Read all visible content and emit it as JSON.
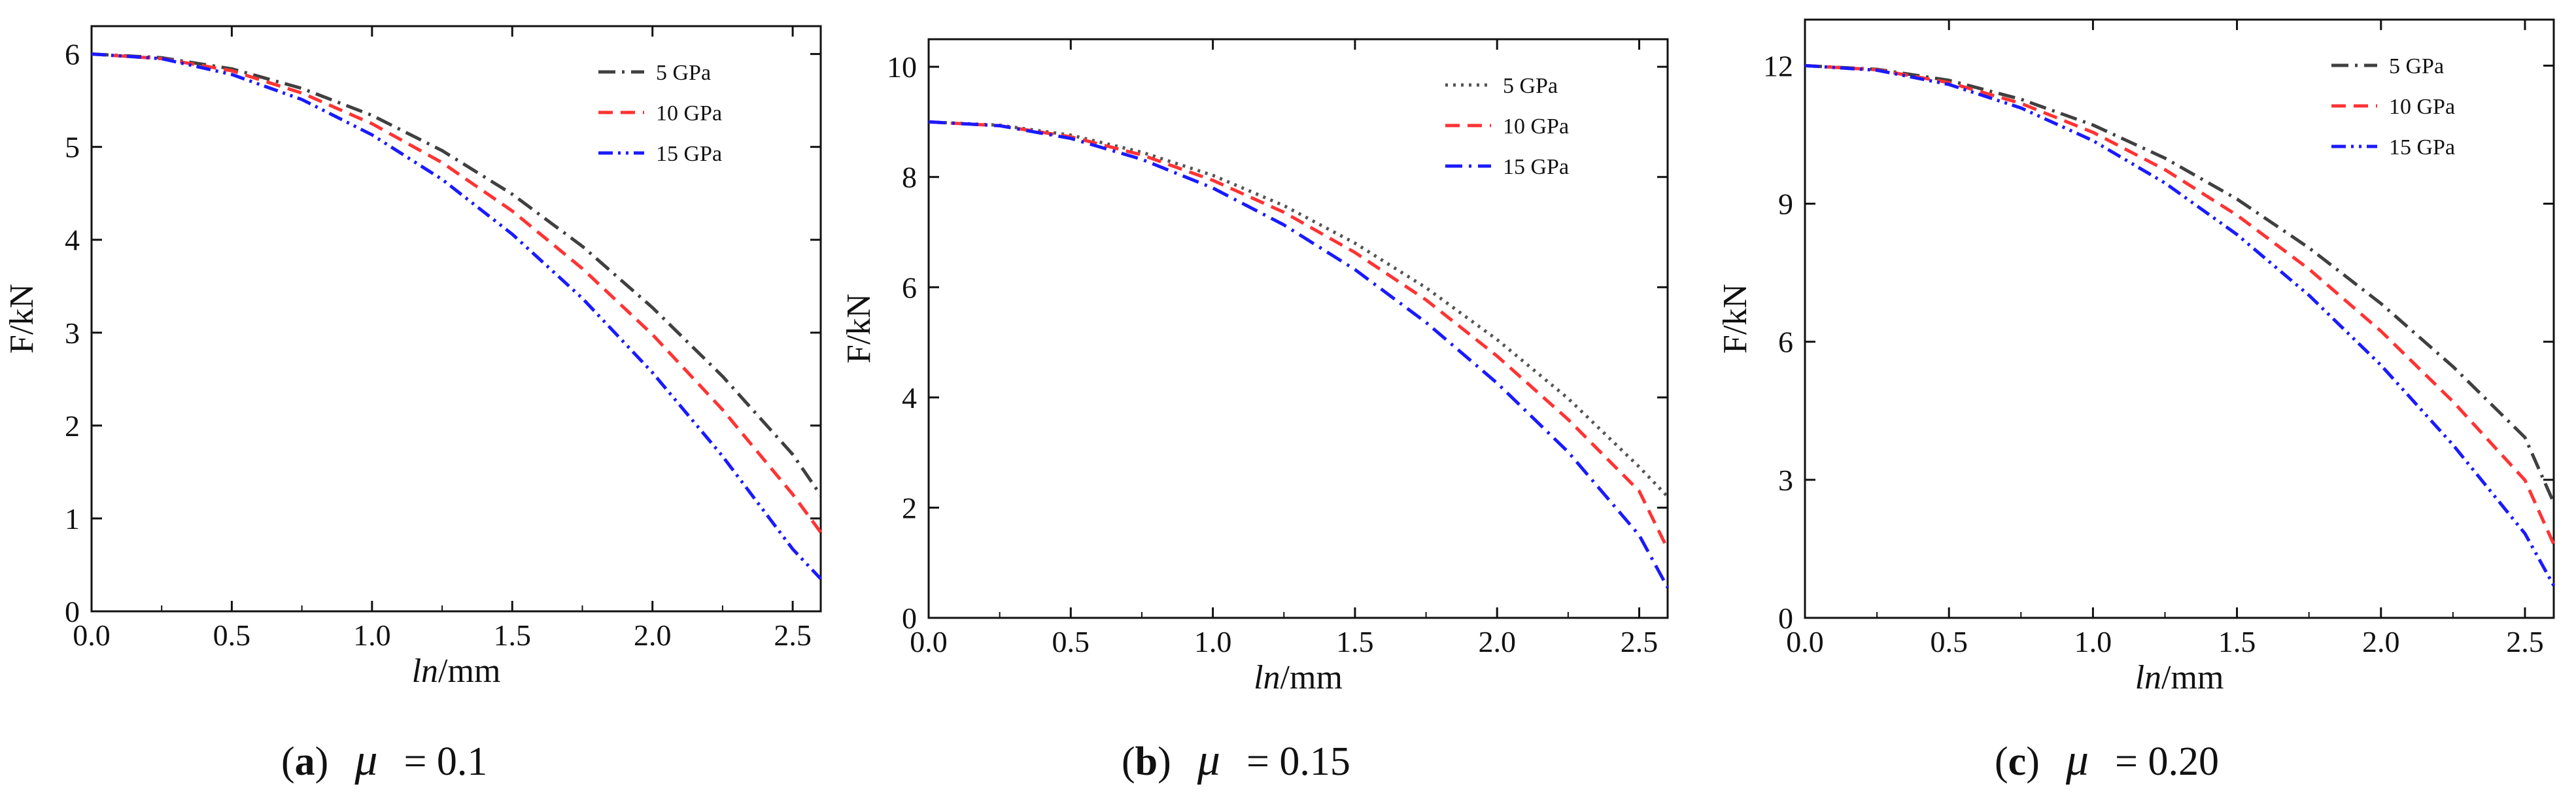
{
  "chart_data": [
    {
      "type": "line",
      "title": "",
      "xlabel_italic": "ln",
      "xlabel_unit": "/mm",
      "ylabel": "F/kN",
      "xlim": [
        0,
        2.6
      ],
      "ylim": [
        0,
        6.3
      ],
      "xticks": [
        0.0,
        0.5,
        1.0,
        1.5,
        2.0,
        2.5
      ],
      "xtick_labels": [
        "0.0",
        "0.5",
        "1.0",
        "1.5",
        "2.0",
        "2.5"
      ],
      "yticks": [
        0,
        1,
        2,
        3,
        4,
        5,
        6
      ],
      "ytick_labels": [
        "0",
        "1",
        "2",
        "3",
        "4",
        "5",
        "6"
      ],
      "legend_position": "top-right",
      "x": [
        0,
        0.25,
        0.5,
        0.75,
        1.0,
        1.25,
        1.5,
        1.75,
        2.0,
        2.25,
        2.5,
        2.6
      ],
      "series": [
        {
          "name": "5 GPa",
          "color": "#404040",
          "dash": "dashdot",
          "values": [
            6.0,
            5.96,
            5.84,
            5.63,
            5.34,
            4.96,
            4.49,
            3.93,
            3.27,
            2.53,
            1.69,
            1.25
          ]
        },
        {
          "name": "10 GPa",
          "color": "#ff3333",
          "dash": "dashed",
          "values": [
            6.0,
            5.95,
            5.82,
            5.58,
            5.25,
            4.83,
            4.31,
            3.69,
            2.98,
            2.17,
            1.26,
            0.85
          ]
        },
        {
          "name": "15 GPa",
          "color": "#1a1aff",
          "dash": "dashdotdot",
          "values": [
            6.0,
            5.95,
            5.78,
            5.51,
            5.13,
            4.65,
            4.06,
            3.37,
            2.57,
            1.67,
            0.67,
            0.35
          ]
        }
      ],
      "caption": {
        "label": "a",
        "symbol": "μ",
        "value": "= 0.1"
      }
    },
    {
      "type": "line",
      "title": "",
      "xlabel_italic": "ln",
      "xlabel_unit": "/mm",
      "ylabel": "F/kN",
      "xlim": [
        0,
        2.6
      ],
      "ylim": [
        0,
        10.5
      ],
      "xticks": [
        0.0,
        0.5,
        1.0,
        1.5,
        2.0,
        2.5
      ],
      "xtick_labels": [
        "0.0",
        "0.5",
        "1.0",
        "1.5",
        "2.0",
        "2.5"
      ],
      "yticks": [
        0,
        2,
        4,
        6,
        8,
        10
      ],
      "ytick_labels": [
        "0",
        "2",
        "4",
        "6",
        "8",
        "10"
      ],
      "legend_position": "top-right",
      "x": [
        0,
        0.25,
        0.5,
        0.75,
        1.0,
        1.25,
        1.5,
        1.75,
        2.0,
        2.25,
        2.5,
        2.6
      ],
      "series": [
        {
          "name": "5 GPa",
          "color": "#555555",
          "dash": "dotted",
          "values": [
            9.0,
            8.94,
            8.76,
            8.45,
            8.03,
            7.48,
            6.8,
            5.99,
            5.05,
            3.98,
            2.74,
            2.2
          ]
        },
        {
          "name": "10 GPa",
          "color": "#ff3333",
          "dash": "dashed",
          "values": [
            9.0,
            8.93,
            8.73,
            8.4,
            7.94,
            7.36,
            6.63,
            5.77,
            4.75,
            3.6,
            2.3,
            1.25
          ]
        },
        {
          "name": "15 GPa",
          "color": "#1a1aff",
          "dash": "dashdot",
          "values": [
            9.0,
            8.93,
            8.7,
            8.32,
            7.8,
            7.13,
            6.32,
            5.36,
            4.26,
            3.01,
            1.5,
            0.55
          ]
        }
      ],
      "caption": {
        "label": "b",
        "symbol": "μ",
        "value": "= 0.15"
      }
    },
    {
      "type": "line",
      "title": "",
      "xlabel_italic": "ln",
      "xlabel_unit": "/mm",
      "ylabel": "F/kN",
      "xlim": [
        0,
        2.6
      ],
      "ylim": [
        0,
        13
      ],
      "xticks": [
        0.0,
        0.5,
        1.0,
        1.5,
        2.0,
        2.5
      ],
      "xtick_labels": [
        "0.0",
        "0.5",
        "1.0",
        "1.5",
        "2.0",
        "2.5"
      ],
      "yticks": [
        0,
        3,
        6,
        9,
        12
      ],
      "ytick_labels": [
        "0",
        "3",
        "6",
        "9",
        "12"
      ],
      "legend_position": "top-right",
      "x": [
        0,
        0.25,
        0.5,
        0.75,
        1.0,
        1.25,
        1.5,
        1.75,
        2.0,
        2.25,
        2.5,
        2.6
      ],
      "series": [
        {
          "name": "5 GPa",
          "color": "#404040",
          "dash": "dashdot",
          "values": [
            12.0,
            11.92,
            11.68,
            11.27,
            10.71,
            9.99,
            9.1,
            8.04,
            6.83,
            5.46,
            3.92,
            2.5
          ]
        },
        {
          "name": "10 GPa",
          "color": "#ff3333",
          "dash": "dashed",
          "values": [
            12.0,
            11.91,
            11.63,
            11.18,
            10.55,
            9.74,
            8.75,
            7.58,
            6.23,
            4.7,
            2.99,
            1.6
          ]
        },
        {
          "name": "15 GPa",
          "color": "#1a1aff",
          "dash": "dashdotdot",
          "values": [
            12.0,
            11.9,
            11.59,
            11.08,
            10.37,
            9.45,
            8.33,
            7.01,
            5.49,
            3.76,
            1.83,
            0.7
          ]
        }
      ],
      "caption": {
        "label": "c",
        "symbol": "μ",
        "value": "= 0.20"
      }
    }
  ]
}
